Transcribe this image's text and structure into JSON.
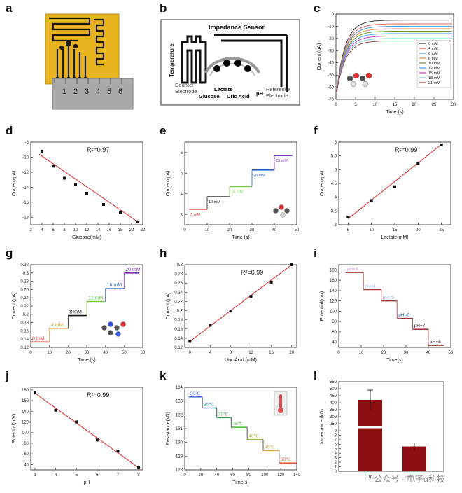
{
  "figure": {
    "watermark": "公众号 · 电子α科技"
  },
  "panels": {
    "a": {
      "label": "a",
      "ruler_ticks": [
        "1",
        "2",
        "3",
        "4",
        "5",
        "6"
      ],
      "colors": {
        "board": "#e7b420",
        "trace": "#1a1a1a",
        "ruler": "#a9a9a9"
      }
    },
    "b": {
      "label": "b",
      "title": "Impedance Sensor",
      "side_label": "Temperature",
      "labels": {
        "counter": "Counter\nElectrode",
        "glucose": "Glucose",
        "lactate": "Lactate",
        "uric": "Uric Acid",
        "ph": "pH",
        "reference": "Reference\nElectrode"
      },
      "colors": {
        "glucose": "#1e90ff",
        "lactate": "#22aa44",
        "uric": "#e0202a",
        "ph": "#8a3fb8"
      }
    },
    "c": {
      "label": "c"
    },
    "d": {
      "label": "d"
    },
    "e": {
      "label": "e"
    },
    "f": {
      "label": "f"
    },
    "g": {
      "label": "g"
    },
    "h": {
      "label": "h"
    },
    "i": {
      "label": "i"
    },
    "j": {
      "label": "j"
    },
    "k": {
      "label": "k"
    },
    "l": {
      "label": "l"
    }
  },
  "chart_data": [
    {
      "id": "c",
      "type": "line",
      "xlabel": "Time (s)",
      "ylabel": "Current (μA)",
      "xlim": [
        0,
        30
      ],
      "ylim": [
        -70,
        0
      ],
      "xticks": [
        0,
        5,
        10,
        15,
        20,
        25,
        30
      ],
      "yticks": [
        0,
        -10,
        -20,
        -30,
        -40,
        -50,
        -60,
        -70
      ],
      "legend": "right",
      "series": [
        {
          "name": "0 mM",
          "color": "#222222",
          "final": -5
        },
        {
          "name": "4 mM",
          "color": "#e05555",
          "final": -8
        },
        {
          "name": "6 mM",
          "color": "#4a90d9",
          "final": -10
        },
        {
          "name": "8 mM",
          "color": "#e08a3c",
          "final": -12
        },
        {
          "name": "10 mM",
          "color": "#6b8e23",
          "final": -14
        },
        {
          "name": "12 mM",
          "color": "#3399ff",
          "final": -16
        },
        {
          "name": "15 mM",
          "color": "#cc33cc",
          "final": -18
        },
        {
          "name": "18 mM",
          "color": "#66cccc",
          "final": -20
        },
        {
          "name": "21 mM",
          "color": "#993333",
          "final": -22
        }
      ]
    },
    {
      "id": "d",
      "type": "scatter",
      "xlabel": "Glucose(mM)",
      "ylabel": "Current(μA)",
      "annotation": "R²=0.97",
      "xlim": [
        2,
        22
      ],
      "ylim": [
        -19,
        -8
      ],
      "xticks": [
        2,
        4,
        6,
        8,
        10,
        12,
        14,
        16,
        18,
        20,
        22
      ],
      "yticks": [
        -8,
        -10,
        -12,
        -14,
        -16,
        -18
      ],
      "x": [
        4,
        6,
        8,
        10,
        12,
        15,
        18,
        21
      ],
      "y": [
        -9.2,
        -11.2,
        -12.8,
        -13.6,
        -14.8,
        -16.3,
        -17.4,
        -18.6
      ],
      "fit": {
        "x": [
          3.5,
          21.5
        ],
        "y": [
          -9.6,
          -18.8
        ]
      }
    },
    {
      "id": "e",
      "type": "line",
      "xlabel": "Time (s)",
      "ylabel": "Current(μA)",
      "xlim": [
        0,
        50
      ],
      "ylim": [
        2.5,
        6.5
      ],
      "xticks": [
        0,
        10,
        20,
        30,
        40,
        50
      ],
      "yticks": [
        3,
        4,
        5,
        6
      ],
      "steps": [
        {
          "x0": 2,
          "x1": 10,
          "y": 3.25,
          "color": "#e63b3b",
          "label": "5 mM"
        },
        {
          "x0": 10,
          "x1": 20,
          "y": 3.85,
          "color": "#111111",
          "label": "10 mM"
        },
        {
          "x0": 20,
          "x1": 30,
          "y": 4.35,
          "color": "#7ac943",
          "label": "15 mM"
        },
        {
          "x0": 30,
          "x1": 40,
          "y": 5.15,
          "color": "#2b5fd0",
          "label": "20 mM"
        },
        {
          "x0": 40,
          "x1": 48,
          "y": 5.85,
          "color": "#7b2fc0",
          "label": "25 mM"
        }
      ]
    },
    {
      "id": "f",
      "type": "scatter",
      "xlabel": "Lactate(mM)",
      "ylabel": "Current(μA)",
      "annotation": "R²=0.99",
      "xlim": [
        3,
        27
      ],
      "ylim": [
        3.0,
        6.0
      ],
      "xticks": [
        5,
        10,
        15,
        20,
        25
      ],
      "yticks": [
        3.0,
        3.5,
        4.0,
        4.5,
        5.0,
        5.5,
        6.0
      ],
      "x": [
        5,
        10,
        15,
        20,
        25
      ],
      "y": [
        3.28,
        3.88,
        4.38,
        5.22,
        5.9
      ],
      "fit": {
        "x": [
          5,
          25
        ],
        "y": [
          3.22,
          5.92
        ]
      }
    },
    {
      "id": "g",
      "type": "line",
      "xlabel": "Time (s)",
      "ylabel": "Current (μA)",
      "xlim": [
        0,
        60
      ],
      "ylim": [
        0.12,
        0.32
      ],
      "xticks": [
        0,
        10,
        20,
        30,
        40,
        50,
        60
      ],
      "yticks": [
        0.12,
        0.14,
        0.16,
        0.18,
        0.2,
        0.22,
        0.24,
        0.26,
        0.28,
        0.3,
        0.32
      ],
      "steps": [
        {
          "x0": 0,
          "x1": 10,
          "y": 0.133,
          "color": "#e63b3b",
          "label": "0 mM"
        },
        {
          "x0": 10,
          "x1": 20,
          "y": 0.166,
          "color": "#f0a030",
          "label": "4 mM"
        },
        {
          "x0": 20,
          "x1": 30,
          "y": 0.197,
          "color": "#111111",
          "label": "8 mM"
        },
        {
          "x0": 30,
          "x1": 40,
          "y": 0.231,
          "color": "#7ac943",
          "label": "12 mM"
        },
        {
          "x0": 40,
          "x1": 50,
          "y": 0.262,
          "color": "#2b5fd0",
          "label": "16 mM"
        },
        {
          "x0": 50,
          "x1": 58,
          "y": 0.3,
          "color": "#7b2fc0",
          "label": "20 mM"
        }
      ]
    },
    {
      "id": "h",
      "type": "scatter",
      "xlabel": "Uric Acid (mM)",
      "ylabel": "Current (μA)",
      "annotation": "R²=0.99",
      "xlim": [
        -1,
        21
      ],
      "ylim": [
        0.12,
        0.3
      ],
      "xticks": [
        0,
        4,
        8,
        12,
        16,
        20
      ],
      "yticks": [
        0.12,
        0.14,
        0.16,
        0.18,
        0.2,
        0.22,
        0.24,
        0.26,
        0.28,
        0.3
      ],
      "x": [
        0,
        4,
        8,
        12,
        16,
        20
      ],
      "y": [
        0.133,
        0.168,
        0.199,
        0.231,
        0.262,
        0.3
      ],
      "fit": {
        "x": [
          0,
          20
        ],
        "y": [
          0.133,
          0.3
        ]
      }
    },
    {
      "id": "i",
      "type": "line",
      "xlabel": "Time(s)",
      "ylabel": "Potential(mV)",
      "xlim": [
        0,
        50
      ],
      "ylim": [
        30,
        190
      ],
      "xticks": [
        0,
        10,
        20,
        30,
        40,
        50
      ],
      "yticks": [
        40,
        60,
        80,
        100,
        120,
        140,
        160,
        180
      ],
      "steps": [
        {
          "x0": 3,
          "x1": 11,
          "y": 175,
          "color": "#a23a3a",
          "label": "pH=3",
          "lcolor": "#b8a0d8"
        },
        {
          "x0": 11,
          "x1": 19,
          "y": 142,
          "color": "#a23a3a",
          "label": "pH=4",
          "lcolor": "#9cbff0"
        },
        {
          "x0": 19,
          "x1": 26,
          "y": 120,
          "color": "#a23a3a",
          "label": "pH=5",
          "lcolor": "#8ab8e8"
        },
        {
          "x0": 26,
          "x1": 33,
          "y": 86,
          "color": "#a23a3a",
          "label": "pH=6",
          "lcolor": "#3a6fbf"
        },
        {
          "x0": 33,
          "x1": 40,
          "y": 65,
          "color": "#a23a3a",
          "label": "pH=7",
          "lcolor": "#222222"
        },
        {
          "x0": 40,
          "x1": 47,
          "y": 34,
          "color": "#a23a3a",
          "label": "pH=8",
          "lcolor": "#222222"
        }
      ]
    },
    {
      "id": "j",
      "type": "scatter",
      "xlabel": "pH",
      "ylabel": "Potential(mV)",
      "annotation": "R²=0.99",
      "xlim": [
        2.8,
        8.2
      ],
      "ylim": [
        30,
        185
      ],
      "xticks": [
        3,
        4,
        5,
        6,
        7,
        8
      ],
      "yticks": [
        40,
        60,
        80,
        100,
        120,
        140,
        160,
        180
      ],
      "x": [
        3,
        4,
        5,
        6,
        7,
        8
      ],
      "y": [
        175,
        142,
        120,
        86,
        65,
        34
      ],
      "fit": {
        "x": [
          3,
          8
        ],
        "y": [
          174,
          34
        ]
      }
    },
    {
      "id": "k",
      "type": "line",
      "xlabel": "Time(s)",
      "ylabel": "Resistance(kΩ)",
      "xlim": [
        0,
        140
      ],
      "ylim": [
        128,
        134
      ],
      "xticks": [
        0,
        20,
        40,
        60,
        80,
        100,
        120,
        140
      ],
      "yticks": [
        128,
        129,
        130,
        131,
        132,
        133,
        134
      ],
      "steps": [
        {
          "x0": 5,
          "x1": 22,
          "y": 133.3,
          "color": "#4a6fd0",
          "label": "20℃"
        },
        {
          "x0": 22,
          "x1": 40,
          "y": 132.5,
          "color": "#2f9aa0",
          "label": "25℃"
        },
        {
          "x0": 40,
          "x1": 58,
          "y": 131.8,
          "color": "#3f9f5a",
          "label": "30℃"
        },
        {
          "x0": 58,
          "x1": 78,
          "y": 131.1,
          "color": "#55c04a",
          "label": "35℃"
        },
        {
          "x0": 78,
          "x1": 98,
          "y": 130.2,
          "color": "#9ec23a",
          "label": "40℃"
        },
        {
          "x0": 98,
          "x1": 118,
          "y": 129.4,
          "color": "#e0a83a",
          "label": "45℃"
        },
        {
          "x0": 118,
          "x1": 140,
          "y": 128.5,
          "color": "#e05a3a",
          "label": "50℃"
        }
      ]
    },
    {
      "id": "l",
      "type": "bar",
      "ylabel": "Impedance (kΩ)",
      "categories": [
        "Dry",
        "Wet Skin"
      ],
      "values": [
        420,
        5.5
      ],
      "errors": [
        70,
        0.8
      ],
      "color": "#8b0d12",
      "yticks_top": [
        "550",
        "500",
        "450",
        "400",
        "350",
        "300",
        "250"
      ],
      "yticks_bottom": [
        "9",
        "8",
        "7",
        "6",
        "5",
        "4",
        "3",
        "2",
        "1",
        "0"
      ]
    }
  ]
}
